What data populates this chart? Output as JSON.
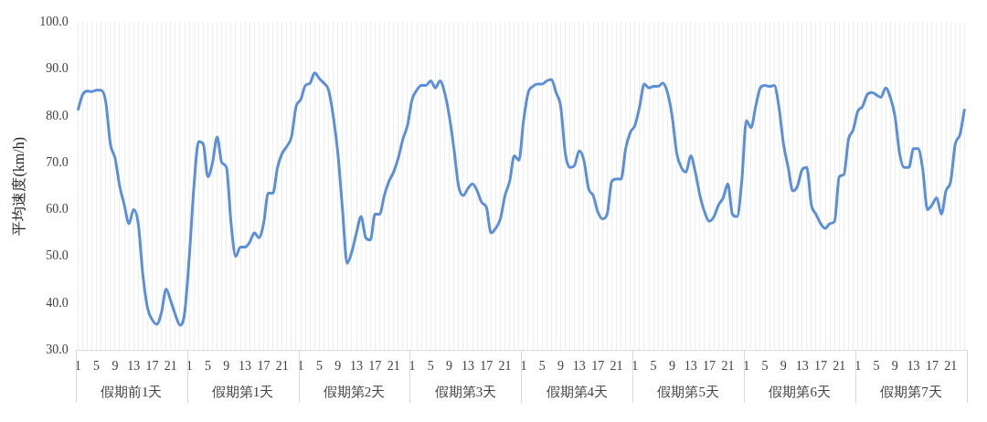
{
  "chart_data": {
    "type": "line",
    "ylabel": "平均速度(km/h)",
    "categories": [
      "1",
      null,
      null,
      null,
      "5",
      null,
      null,
      null,
      "9",
      null,
      null,
      null,
      "13",
      null,
      null,
      null,
      "17",
      null,
      null,
      null,
      "21",
      null,
      null,
      null,
      "1",
      null,
      null,
      null,
      "5",
      null,
      null,
      null,
      "9",
      null,
      null,
      null,
      "13",
      null,
      null,
      null,
      "17",
      null,
      null,
      null,
      "21",
      null,
      null,
      null,
      "1",
      null,
      null,
      null,
      "5",
      null,
      null,
      null,
      "9",
      null,
      null,
      null,
      "13",
      null,
      null,
      null,
      "17",
      null,
      null,
      null,
      "21",
      null,
      null,
      null,
      "1",
      null,
      null,
      null,
      "5",
      null,
      null,
      null,
      "9",
      null,
      null,
      null,
      "13",
      null,
      null,
      null,
      "17",
      null,
      null,
      null,
      "21",
      null,
      null,
      null,
      "1",
      null,
      null,
      null,
      "5",
      null,
      null,
      null,
      "9",
      null,
      null,
      null,
      "13",
      null,
      null,
      null,
      "17",
      null,
      null,
      null,
      "21",
      null,
      null,
      null,
      "1",
      null,
      null,
      null,
      "5",
      null,
      null,
      null,
      "9",
      null,
      null,
      null,
      "13",
      null,
      null,
      null,
      "17",
      null,
      null,
      null,
      "21",
      null,
      null,
      null,
      "1",
      null,
      null,
      null,
      "5",
      null,
      null,
      null,
      "9",
      null,
      null,
      null,
      "13",
      null,
      null,
      null,
      "17",
      null,
      null,
      null,
      "21",
      null,
      null,
      null,
      "1",
      null,
      null,
      null,
      "5",
      null,
      null,
      null,
      "9",
      null,
      null,
      null,
      "13",
      null,
      null,
      null,
      "17",
      null,
      null,
      null,
      "21",
      null,
      null,
      null
    ],
    "series": [
      {
        "color": "#5b8fd8",
        "values": [
          81.2,
          84.5,
          85.3,
          85.2,
          85.5,
          85.5,
          83,
          74,
          71,
          65,
          61,
          57,
          60,
          57,
          46,
          39,
          36.5,
          35.5,
          38,
          43,
          40.5,
          37.5,
          35.3,
          38,
          50,
          65,
          74.5,
          74,
          67,
          70,
          75.5,
          70,
          69,
          57,
          50,
          52,
          52,
          53,
          55,
          54,
          57,
          63.5,
          63.5,
          69,
          72,
          73.5,
          75.5,
          82,
          83.5,
          86.5,
          87,
          89.2,
          88,
          87,
          85.5,
          80,
          72,
          60,
          48.5,
          51,
          55,
          58.5,
          54,
          53.5,
          59,
          59,
          63,
          66,
          68,
          71,
          75,
          78,
          83.5,
          85.5,
          86.5,
          86.5,
          87.5,
          86,
          87.5,
          85,
          80,
          73,
          65,
          63,
          64.5,
          65.5,
          64,
          61.5,
          60.5,
          55,
          56,
          58,
          63,
          66,
          71.5,
          70.5,
          79,
          85,
          86.3,
          86.8,
          86.8,
          87.5,
          87.8,
          85,
          82,
          72,
          69,
          69.5,
          72.5,
          70.5,
          64.5,
          63,
          59.5,
          58,
          59,
          66,
          66.5,
          66.5,
          73,
          76.5,
          78,
          82,
          86.8,
          86,
          86.3,
          86.3,
          87,
          85,
          80,
          72,
          69,
          68,
          71.5,
          68,
          63,
          59.5,
          57.5,
          58.5,
          61,
          62.5,
          65.5,
          59,
          58.5,
          66,
          79,
          77.5,
          82,
          86,
          86.5,
          86.3,
          86.5,
          82,
          74,
          69,
          64,
          65,
          68.5,
          69,
          61,
          59,
          57,
          56,
          57,
          57.5,
          67,
          67.5,
          75,
          77,
          81,
          82,
          84.5,
          85,
          84.5,
          84,
          86,
          84,
          80,
          72,
          69,
          69,
          73,
          73,
          68.5,
          60,
          61,
          62.5,
          59,
          64,
          66,
          74,
          76,
          81.5
        ]
      }
    ],
    "ylim": [
      30,
      100
    ],
    "yticks": [
      {
        "value": 30,
        "label": "30.0"
      },
      {
        "value": 40,
        "label": "40.0"
      },
      {
        "value": 50,
        "label": "50.0"
      },
      {
        "value": 60,
        "label": "60.0"
      },
      {
        "value": 70,
        "label": "70.0"
      },
      {
        "value": 80,
        "label": "80.0"
      },
      {
        "value": 90,
        "label": "90.0"
      },
      {
        "value": 100,
        "label": "100.0"
      }
    ],
    "grid": "x",
    "legend": false,
    "marker": "none",
    "line_style": "solid",
    "annotations": [
      "假期前1天",
      "假期第1天",
      "假期第2天",
      "假期第3天",
      "假期第4天",
      "假期第5天",
      "假期第6天",
      "假期第7天"
    ]
  }
}
